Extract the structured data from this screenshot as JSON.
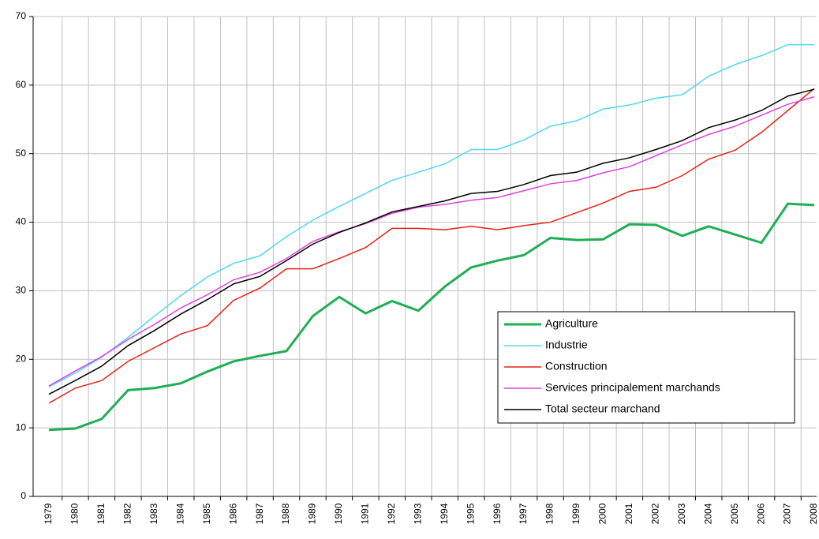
{
  "chart_data": {
    "type": "line",
    "categories": [
      "1979",
      "1980",
      "1981",
      "1982",
      "1983",
      "1984",
      "1985",
      "1986",
      "1987",
      "1988",
      "1989",
      "1990",
      "1991",
      "1992",
      "1993",
      "1994",
      "1995",
      "1996",
      "1997",
      "1998",
      "1999",
      "2000",
      "2001",
      "2002",
      "2003",
      "2004",
      "2005",
      "2006",
      "2007",
      "2008"
    ],
    "series": [
      {
        "name": "Agriculture",
        "color": "#1fae55",
        "width": 3,
        "values": [
          9.7,
          9.9,
          11.3,
          15.5,
          15.8,
          16.5,
          18.2,
          19.7,
          20.5,
          21.2,
          26.3,
          29.1,
          26.7,
          28.5,
          27.1,
          30.6,
          33.4,
          34.4,
          35.2,
          37.7,
          37.4,
          37.5,
          39.7,
          39.6,
          38.0,
          39.4,
          38.2,
          37.0,
          42.7,
          42.5
        ]
      },
      {
        "name": "Industrie",
        "color": "#4dd8f0",
        "width": 1.5,
        "values": [
          16.0,
          18.0,
          20.3,
          23.2,
          26.3,
          29.3,
          32.0,
          34.0,
          35.1,
          37.9,
          40.3,
          42.3,
          44.2,
          46.1,
          47.3,
          48.5,
          50.6,
          50.6,
          52.0,
          54.0,
          54.8,
          56.5,
          57.1,
          58.1,
          58.6,
          61.3,
          63.0,
          64.3,
          65.9,
          65.9
        ]
      },
      {
        "name": "Construction",
        "color": "#e82018",
        "width": 1.5,
        "values": [
          13.6,
          15.8,
          16.9,
          19.7,
          21.7,
          23.7,
          24.9,
          28.6,
          30.4,
          33.2,
          33.2,
          34.7,
          36.3,
          39.1,
          39.1,
          38.9,
          39.4,
          38.9,
          39.5,
          40.0,
          41.4,
          42.8,
          44.5,
          45.1,
          46.8,
          49.2,
          50.5,
          53.1,
          56.3,
          59.5
        ]
      },
      {
        "name": "Services principalement marchands",
        "color": "#e040e0",
        "width": 1.5,
        "values": [
          16.1,
          18.3,
          20.4,
          22.9,
          25.1,
          27.5,
          29.4,
          31.6,
          32.7,
          34.7,
          37.2,
          38.6,
          39.8,
          41.3,
          42.2,
          42.6,
          43.2,
          43.6,
          44.6,
          45.6,
          46.1,
          47.2,
          48.1,
          49.7,
          51.3,
          52.8,
          54.0,
          55.6,
          57.2,
          58.3
        ]
      },
      {
        "name": "Total secteur marchand",
        "color": "#000000",
        "width": 1.5,
        "values": [
          14.9,
          16.9,
          19.0,
          22.0,
          24.2,
          26.6,
          28.7,
          31.0,
          32.1,
          34.4,
          36.8,
          38.5,
          39.9,
          41.5,
          42.3,
          43.1,
          44.2,
          44.5,
          45.5,
          46.8,
          47.3,
          48.6,
          49.4,
          50.6,
          51.9,
          53.8,
          54.9,
          56.3,
          58.4,
          59.4
        ]
      }
    ],
    "ylim": [
      0,
      70
    ],
    "yticks": [
      0,
      10,
      20,
      30,
      40,
      50,
      60,
      70
    ],
    "grid": true,
    "legend": "lower right"
  }
}
